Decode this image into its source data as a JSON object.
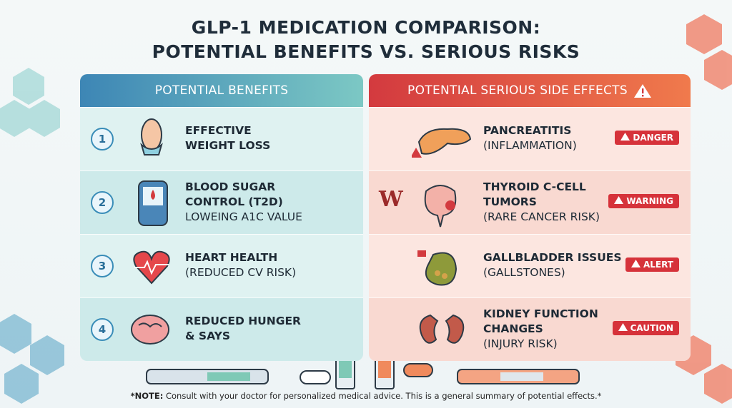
{
  "header": {
    "title": [
      "GLP-1 MEDICATION COMPARISON:",
      "POTENTIAL BENEFITS VS. SERIOUS RISKS"
    ]
  },
  "benefits": {
    "title": "POTENTIAL BENEFITS",
    "items": [
      {
        "number": "1",
        "lines": [
          "EFFECTIVE",
          "WEIGHT LOSS"
        ]
      },
      {
        "number": "2",
        "lines": [
          "BLOOD SUGAR",
          "CONTROL (T2D)"
        ],
        "sub": "LOWEING A1C VALUE"
      },
      {
        "number": "3",
        "lines": [
          "HEART HEALTH"
        ],
        "sub": "(REDUCED CV RISK)"
      },
      {
        "number": "4",
        "lines": [
          "REDUCED HUNGER",
          "& SAYS"
        ]
      }
    ]
  },
  "risks": {
    "title": "POTENTIAL SERIOUS SIDE EFFECTS",
    "items": [
      {
        "lines": [
          "PANCREATITIS"
        ],
        "sub": "(INFLAMMATION)",
        "badge": "DANGER"
      },
      {
        "letter": "W",
        "lines": [
          "THYROID C-CELL",
          "TUMORS"
        ],
        "sub": "(RARE CANCER RISK)",
        "badge": "WARNING"
      },
      {
        "lines": [
          "GALLBLADDER ISSUES"
        ],
        "sub": "(GALLSTONES)",
        "badge": "ALERT"
      },
      {
        "lines": [
          "KIDNEY FUNCTION",
          "CHANGES"
        ],
        "sub": "(INJURY RISK)",
        "badge": "CAUTION"
      }
    ]
  },
  "note": {
    "label": "*NOTE:",
    "text": "Consult with your doctor for personalized medical advice. This is a general summary of potential effects.*"
  }
}
